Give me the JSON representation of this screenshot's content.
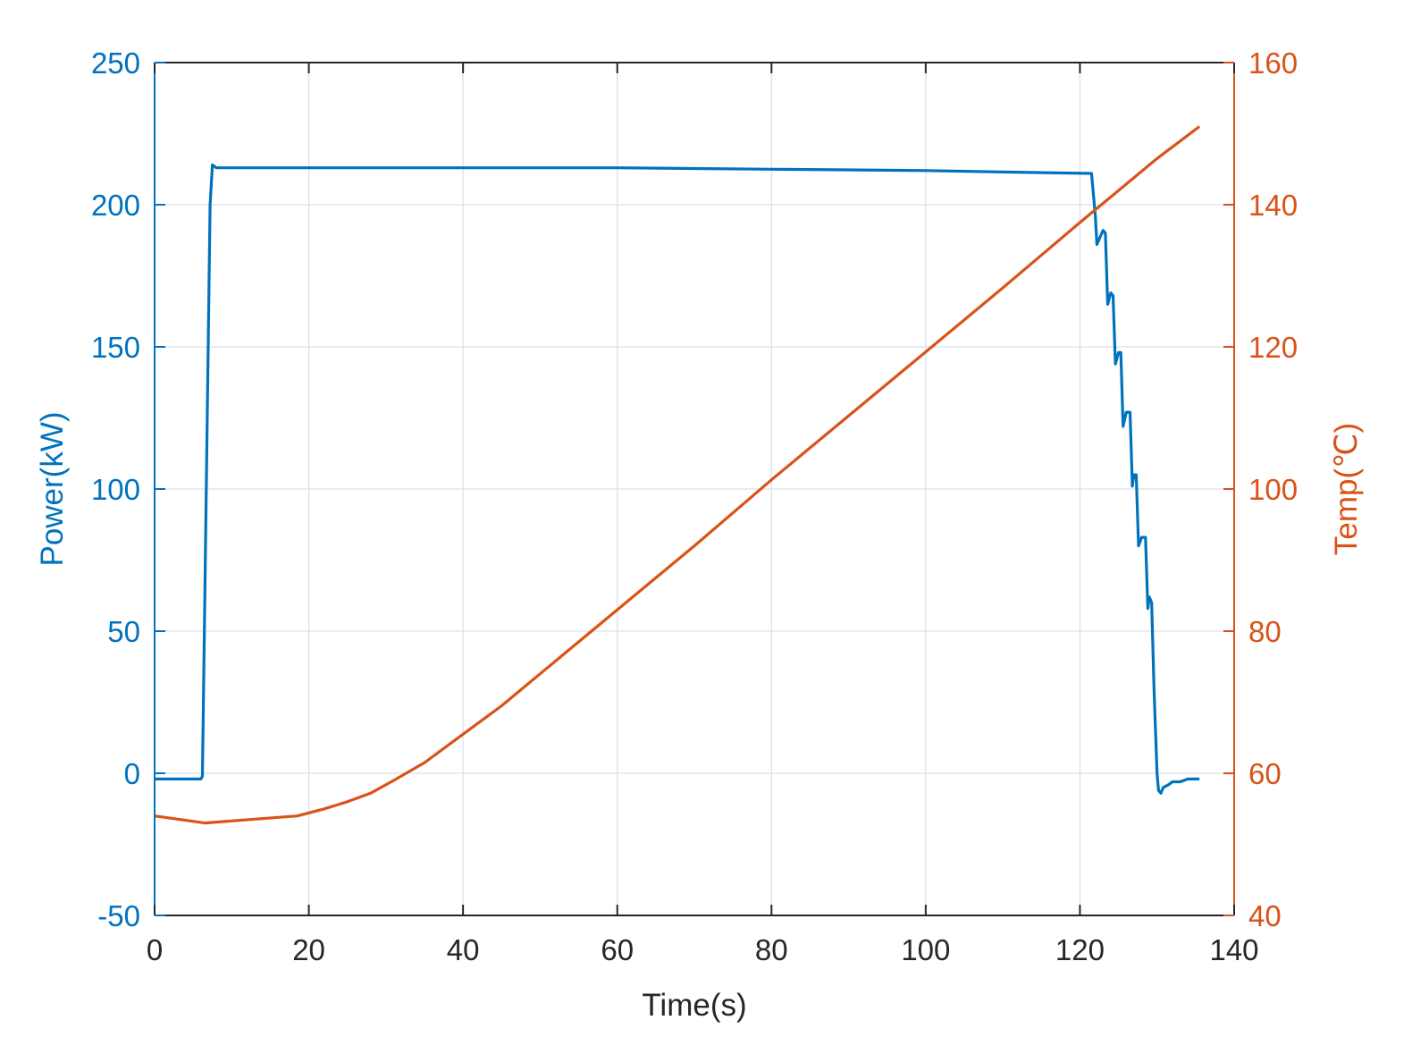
{
  "chart_data": {
    "type": "line",
    "title": "",
    "xlabel": "Time(s)",
    "ylabel_left": "Power(kW)",
    "ylabel_right": "Temp(℃)",
    "xlim": [
      0,
      140
    ],
    "ylim_left": [
      -50,
      250
    ],
    "ylim_right": [
      40,
      160
    ],
    "x_ticks": [
      "0",
      "20",
      "40",
      "60",
      "80",
      "100",
      "120",
      "140"
    ],
    "y_left_ticks": [
      "-50",
      "0",
      "50",
      "100",
      "150",
      "200",
      "250"
    ],
    "y_right_ticks": [
      "40",
      "60",
      "80",
      "100",
      "120",
      "140",
      "160"
    ],
    "grid": true,
    "legend": "none",
    "colors": {
      "left": "#0072BD",
      "right": "#D95319",
      "grid": "#d9e1ea",
      "frame": "#262626"
    },
    "series": [
      {
        "axis": "left",
        "x": [
          0,
          6,
          6.2,
          7.2,
          7.5,
          8,
          20,
          40,
          60,
          80,
          100,
          110,
          121.5,
          122,
          122.2,
          123,
          123.3,
          123.6,
          124,
          124.3,
          124.6,
          125,
          125.3,
          125.6,
          126,
          126.5,
          126.8,
          127,
          127.3,
          127.6,
          128,
          128.5,
          128.8,
          129,
          129.3,
          129.6,
          130,
          130.2,
          130.5,
          130.8,
          131.5,
          132,
          133,
          134,
          135.5
        ],
        "y": [
          -2,
          -2,
          -1,
          200,
          214,
          213,
          213,
          213,
          213,
          212.5,
          212,
          211.5,
          211,
          196,
          186,
          191,
          190,
          165,
          169,
          168,
          144,
          148,
          148,
          122,
          127,
          127,
          101,
          105,
          105,
          80,
          83,
          83,
          58,
          62,
          60,
          30,
          0,
          -6,
          -7,
          -5,
          -4,
          -3,
          -3,
          -2,
          -2
        ]
      },
      {
        "axis": "right",
        "x": [
          0,
          6.5,
          18.5,
          22,
          25,
          28,
          31,
          35,
          40,
          45,
          50,
          55,
          60,
          70,
          80,
          90,
          100,
          110,
          120,
          125,
          130,
          135.5
        ],
        "y": [
          54,
          53,
          54,
          55,
          56,
          57.2,
          59,
          61.5,
          65.5,
          69.5,
          74,
          78.5,
          83,
          92,
          101.3,
          110.3,
          119.3,
          128.3,
          137.5,
          142,
          146.5,
          151
        ]
      }
    ]
  }
}
